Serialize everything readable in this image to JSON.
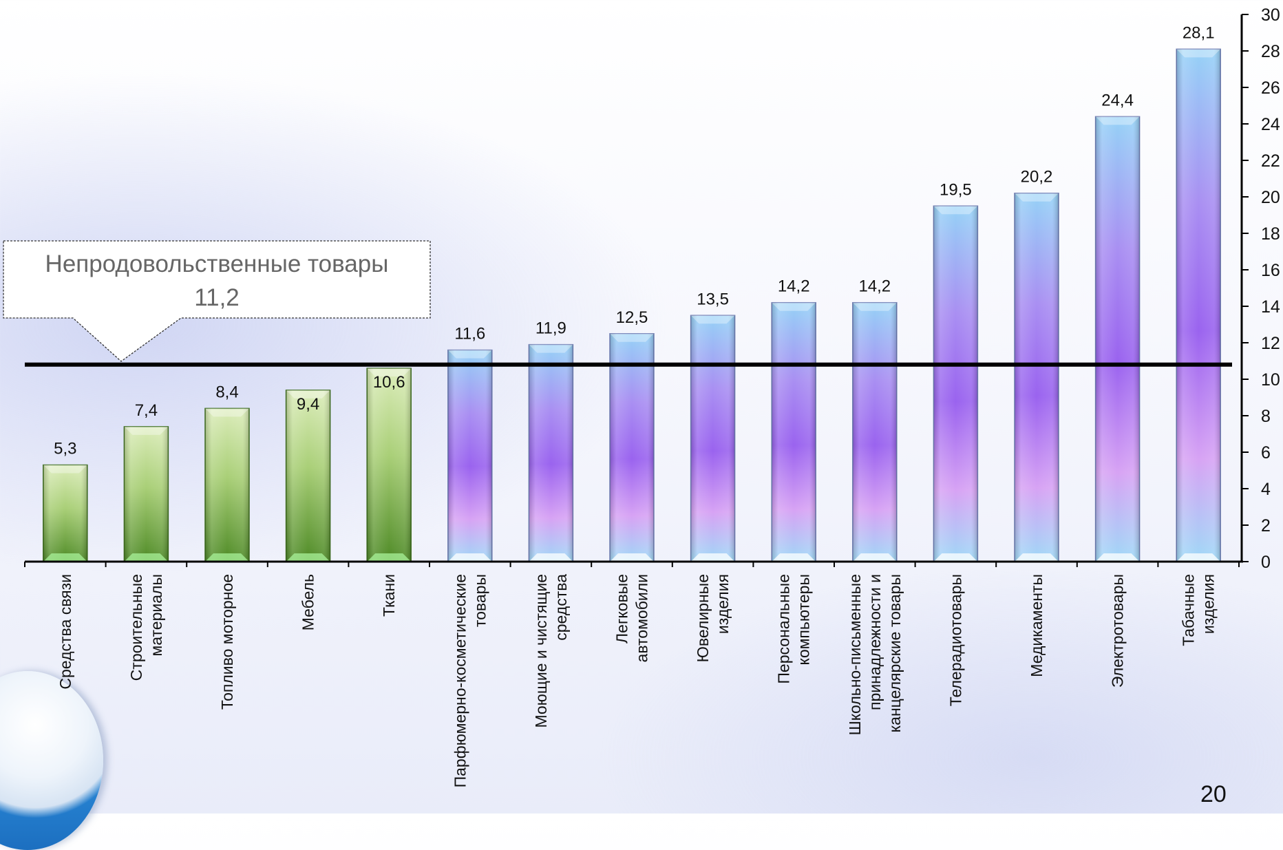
{
  "page_number": "20",
  "callout": {
    "title": "Непродовольственные товары",
    "value": "11,2"
  },
  "chart_data": {
    "type": "bar",
    "title": "",
    "xlabel": "",
    "ylabel": "",
    "ylim": [
      0,
      30
    ],
    "y_ticks": [
      "0",
      "2",
      "4",
      "6",
      "8",
      "10",
      "12",
      "14",
      "16",
      "18",
      "20",
      "22",
      "24",
      "26",
      "28",
      "30"
    ],
    "reference_line": {
      "value": 11.2
    },
    "categories": [
      [
        "Средства связи"
      ],
      [
        "Строительные",
        "материалы"
      ],
      [
        "Топливо моторное"
      ],
      [
        "Мебель"
      ],
      [
        "Ткани"
      ],
      [
        "Парфюмерно-косметические",
        "товары"
      ],
      [
        "Моющие и чистящие",
        "средства"
      ],
      [
        "Легковые",
        "автомобили"
      ],
      [
        "Ювелирные",
        "изделия"
      ],
      [
        "Персональные",
        "компьютеры"
      ],
      [
        "Школьно-письменные",
        "принадлежности и",
        "канцелярские товары"
      ],
      [
        "Телерадиотовары"
      ],
      [
        "Медикаменты"
      ],
      [
        "Электротовары"
      ],
      [
        "Табачные",
        "изделия"
      ]
    ],
    "values": [
      5.3,
      7.4,
      8.4,
      9.4,
      10.6,
      11.6,
      11.9,
      12.5,
      13.5,
      14.2,
      14.2,
      19.5,
      20.2,
      24.4,
      28.1
    ],
    "value_labels": [
      "5,3",
      "7,4",
      "8,4",
      "9,4",
      "10,6",
      "11,6",
      "11,9",
      "12,5",
      "13,5",
      "14,2",
      "14,2",
      "19,5",
      "20,2",
      "24,4",
      "28,1"
    ],
    "bar_groups": [
      "below",
      "below",
      "below",
      "below",
      "below",
      "above",
      "above",
      "above",
      "above",
      "above",
      "above",
      "above",
      "above",
      "above",
      "above"
    ],
    "colors": {
      "below_light": "#d9ebb4",
      "below_dark": "#4e8a26",
      "above_light": "#96d2f7",
      "above_mid": "#9a63ef",
      "above_pink": "#d7a3f4",
      "line": "#000000"
    }
  }
}
